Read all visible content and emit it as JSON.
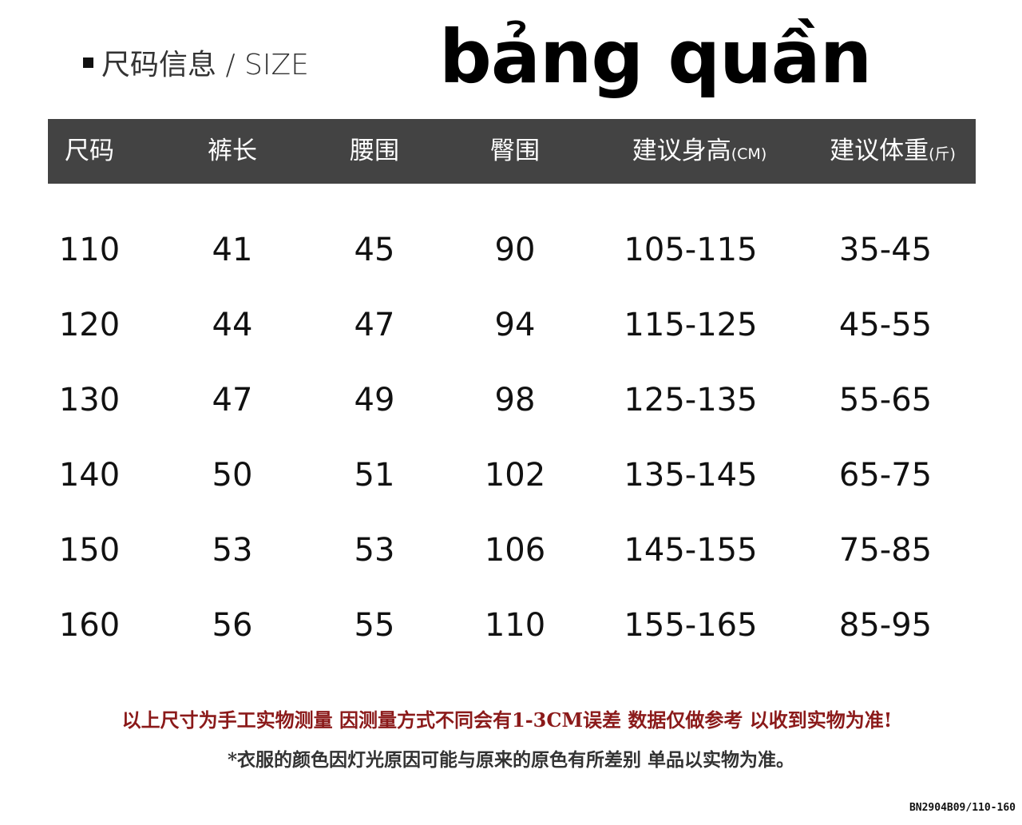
{
  "section_label": "尺码信息 / SIZE",
  "title": "bảng quần",
  "columns": [
    {
      "label": "尺码",
      "unit": ""
    },
    {
      "label": "裤长",
      "unit": ""
    },
    {
      "label": "腰围",
      "unit": ""
    },
    {
      "label": "臀围",
      "unit": ""
    },
    {
      "label": "建议身高",
      "unit": "(CM)"
    },
    {
      "label": "建议体重",
      "unit": "(斤)"
    }
  ],
  "rows": [
    [
      "110",
      "41",
      "45",
      "90",
      "105-115",
      "35-45"
    ],
    [
      "120",
      "44",
      "47",
      "94",
      "115-125",
      "45-55"
    ],
    [
      "130",
      "47",
      "49",
      "98",
      "125-135",
      "55-65"
    ],
    [
      "140",
      "50",
      "51",
      "102",
      "135-145",
      "65-75"
    ],
    [
      "150",
      "53",
      "53",
      "106",
      "145-155",
      "75-85"
    ],
    [
      "160",
      "56",
      "55",
      "110",
      "155-165",
      "85-95"
    ]
  ],
  "note_primary": "以上尺寸为手工实物测量  因测量方式不同会有1-3CM误差 数据仅做参考 以收到实物为准!",
  "note_secondary": "*衣服的颜色因灯光原因可能与原来的原色有所差别 单品以实物为准。",
  "product_code": "BN2904B09/110-160",
  "colors": {
    "header_bg": "#434343",
    "note_primary": "#8b1a1a"
  }
}
